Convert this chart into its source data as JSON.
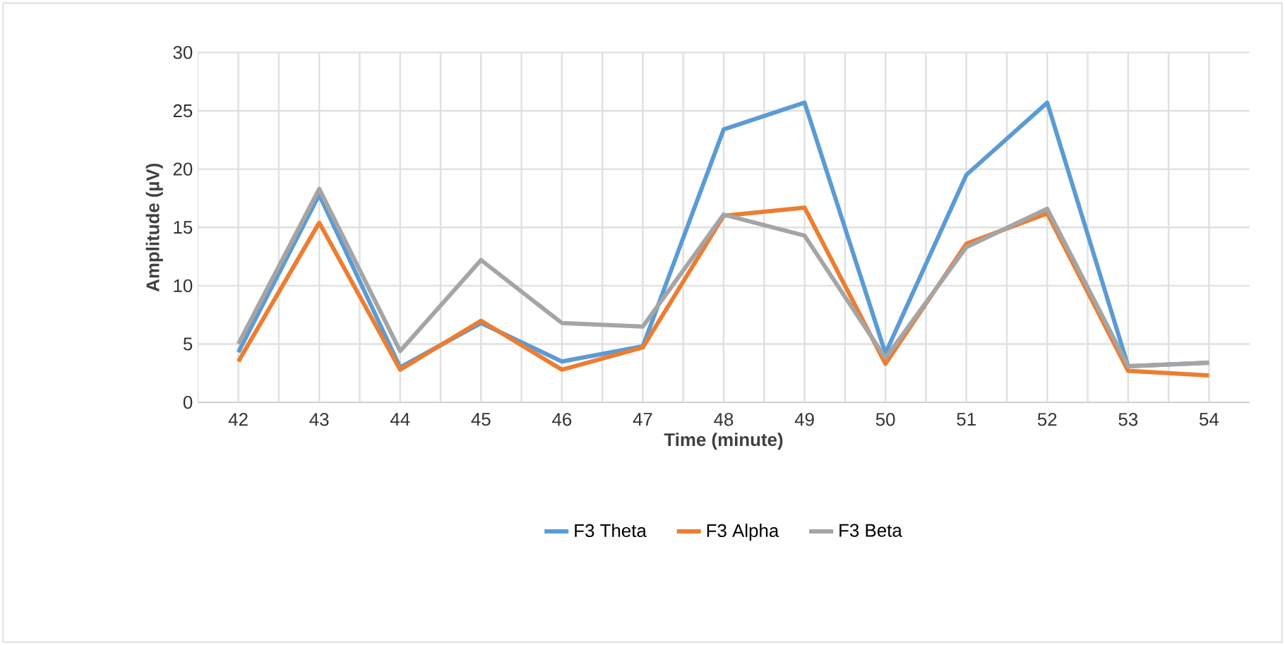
{
  "chart_data": {
    "type": "line",
    "xlabel": "Time (minute)",
    "ylabel": "Amplitude (µV)",
    "categories": [
      "42",
      "43",
      "44",
      "45",
      "46",
      "47",
      "48",
      "49",
      "50",
      "51",
      "52",
      "53",
      "54"
    ],
    "series": [
      {
        "name": "F3 Theta",
        "color": "#5b9bd5",
        "values": [
          4.3,
          17.8,
          3.0,
          6.8,
          3.5,
          4.8,
          23.4,
          25.7,
          4.2,
          19.5,
          25.7,
          3.1,
          3.4
        ]
      },
      {
        "name": "F3 Alpha",
        "color": "#ed7d31",
        "values": [
          3.5,
          15.4,
          2.8,
          7.0,
          2.8,
          4.7,
          16.0,
          16.7,
          3.3,
          13.6,
          16.2,
          2.7,
          2.3
        ]
      },
      {
        "name": "F3 Beta",
        "color": "#a5a5a5",
        "values": [
          5.0,
          18.3,
          4.4,
          12.2,
          6.8,
          6.5,
          16.1,
          14.3,
          3.8,
          13.3,
          16.6,
          3.1,
          3.4
        ]
      }
    ],
    "ylim": [
      0,
      30
    ],
    "yticks": [
      0,
      5,
      10,
      15,
      20,
      25,
      30
    ],
    "grid": true,
    "legend": "bottom",
    "marker": "none",
    "line_style": "solid"
  }
}
